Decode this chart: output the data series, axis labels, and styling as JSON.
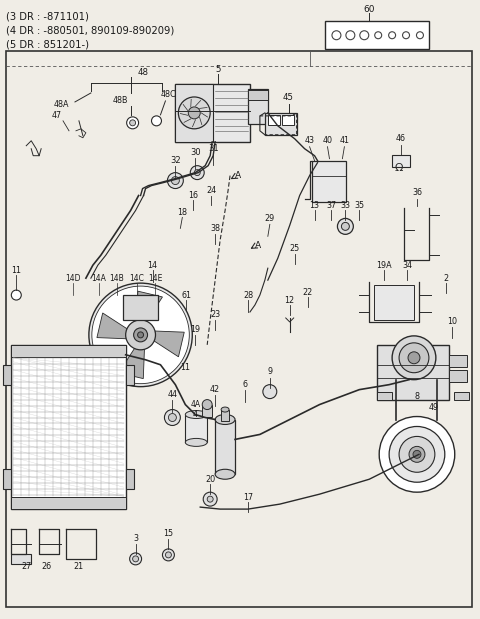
{
  "title_lines": [
    "(3 DR : -871101)",
    "(4 DR : -880501, 890109-890209)",
    "(5 DR : 851201-)"
  ],
  "bg_color": "#f0ede6",
  "line_color": "#2a2a2a",
  "text_color": "#1a1a1a",
  "figsize": [
    4.8,
    6.19
  ],
  "dpi": 100
}
